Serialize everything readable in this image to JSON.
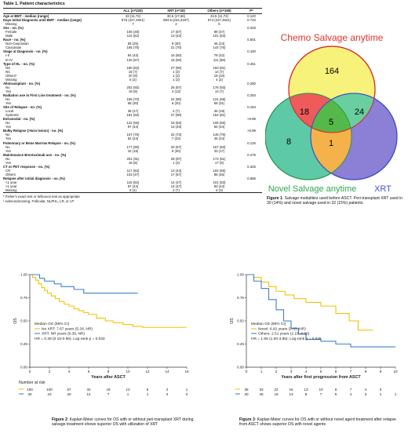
{
  "table": {
    "title": "Table 1. Patient characteristics",
    "columns": [
      "",
      "ALL (n=220)",
      "XRT (n=30)",
      "Others (n=190)",
      "P*"
    ],
    "rows": [
      {
        "label": "Age at BMT - median (range)",
        "bold": true,
        "sub": false,
        "all": "33 (11,72)",
        "xrt": "30.5 (17,66)",
        "others": "34.5 (11,72)",
        "p": "0.120"
      },
      {
        "label": "Days Initial Diagnosis until BMT - median (range)",
        "bold": true,
        "sub": false,
        "all": "575 (227,4921)",
        "xrt": "584.5 (244,3187)",
        "others": "574 (227,4921)",
        "p": "0.733"
      },
      {
        "label": "Missing",
        "bold": false,
        "sub": true,
        "all": "7",
        "xrt": "2",
        "others": "5",
        "p": ""
      },
      {
        "label": "Sex - no. (%)",
        "bold": true,
        "sub": false,
        "all": "",
        "xrt": "",
        "others": "",
        "p": "0.333"
      },
      {
        "label": "Female",
        "bold": false,
        "sub": true,
        "all": "106 (48)",
        "xrt": "17 (57)",
        "others": "89 (47)",
        "p": ""
      },
      {
        "label": "Male",
        "bold": false,
        "sub": true,
        "all": "114 (52)",
        "xrt": "13 (43)",
        "others": "101 (53)",
        "p": ""
      },
      {
        "label": "Race - no. (%)",
        "bold": true,
        "sub": false,
        "all": "",
        "xrt": "",
        "others": "",
        "p": "0.501"
      },
      {
        "label": "Non-Caucasian",
        "bold": false,
        "sub": true,
        "all": "55 (25)",
        "xrt": "9 (30)",
        "others": "46 (24)",
        "p": ""
      },
      {
        "label": "Caucasian",
        "bold": false,
        "sub": true,
        "all": "165 (75)",
        "xrt": "21 (70)",
        "others": "144 (76)",
        "p": ""
      },
      {
        "label": "Stage at Diagnosis - no. (%)",
        "bold": true,
        "sub": false,
        "all": "",
        "xrt": "",
        "others": "",
        "p": "0.430"
      },
      {
        "label": "I-II",
        "bold": false,
        "sub": true,
        "all": "94 (43)",
        "xrt": "15 (50)",
        "others": "79 (42)",
        "p": ""
      },
      {
        "label": "III-IV",
        "bold": false,
        "sub": true,
        "all": "126 (57)",
        "xrt": "15 (50)",
        "others": "111 (58)",
        "p": ""
      },
      {
        "label": "Type of HL - no. (%)",
        "bold": true,
        "sub": false,
        "all": "",
        "xrt": "",
        "others": "",
        "p": "0.461"
      },
      {
        "label": "NS",
        "bold": false,
        "sub": true,
        "all": "180 (82)",
        "xrt": "27 (90)",
        "others": "153 (81)",
        "p": ""
      },
      {
        "label": "NC",
        "bold": false,
        "sub": true,
        "all": "15 (7)",
        "xrt": "1 (3)",
        "others": "14 (7)",
        "p": ""
      },
      {
        "label": "Others¹",
        "bold": false,
        "sub": true,
        "all": "20 (9)",
        "xrt": "1 (3)",
        "others": "19 (10)",
        "p": ""
      },
      {
        "label": "Missing",
        "bold": false,
        "sub": true,
        "all": "5 (2)",
        "xrt": "1 (3)",
        "others": "4 (2)",
        "p": ""
      },
      {
        "label": "Allotransplant - no. (%)",
        "bold": true,
        "sub": false,
        "all": "",
        "xrt": "",
        "others": "",
        "p": "0.280"
      },
      {
        "label": "No",
        "bold": false,
        "sub": true,
        "all": "202 (92)",
        "xrt": "26 (87)",
        "others": "176 (93)",
        "p": ""
      },
      {
        "label": "Yes",
        "bold": false,
        "sub": true,
        "all": "18 (8)",
        "xrt": "4 (13)",
        "others": "14 (7)",
        "p": ""
      },
      {
        "label": "Radiation use in First Line treatment - no. (%)",
        "bold": true,
        "sub": false,
        "all": "",
        "xrt": "",
        "others": "",
        "p": "0.283"
      },
      {
        "label": "No",
        "bold": false,
        "sub": true,
        "all": "155 (70)",
        "xrt": "24 (80)",
        "others": "131 (69)",
        "p": ""
      },
      {
        "label": "Yes",
        "bold": false,
        "sub": true,
        "all": "65 (30)",
        "xrt": "6 (20)",
        "others": "59 (31)",
        "p": ""
      },
      {
        "label": "Site of Relapse - no. (%)",
        "bold": true,
        "sub": false,
        "all": "",
        "xrt": "",
        "others": "",
        "p": "0.184"
      },
      {
        "label": "Local",
        "bold": false,
        "sub": true,
        "all": "38 (17)",
        "xrt": "2 (7)",
        "others": "36 (19)",
        "p": ""
      },
      {
        "label": "Systemic",
        "bold": false,
        "sub": true,
        "all": "181 (82)",
        "xrt": "27 (90)",
        "others": "154 (81)",
        "p": ""
      },
      {
        "label": "Extranodal - no. (%)",
        "bold": true,
        "sub": false,
        "all": "",
        "xrt": "",
        "others": "",
        "p": ">0.99"
      },
      {
        "label": "No",
        "bold": false,
        "sub": true,
        "all": "122 (55)",
        "xrt": "16 (53)",
        "others": "106 (56)",
        "p": ""
      },
      {
        "label": "Yes",
        "bold": false,
        "sub": true,
        "all": "97 (44)",
        "xrt": "13 (43)",
        "others": "84 (44)",
        "p": ""
      },
      {
        "label": "Bulky Relapse (>5cm lesion) - no. (%)",
        "bold": true,
        "sub": false,
        "all": "",
        "xrt": "",
        "others": "",
        "p": ">0.99"
      },
      {
        "label": "No",
        "bold": false,
        "sub": true,
        "all": "167 (76)",
        "xrt": "22 (73)",
        "others": "145 (76)",
        "p": ""
      },
      {
        "label": "Yes",
        "bold": false,
        "sub": true,
        "all": "52 (24)",
        "xrt": "7 (23)",
        "others": "45 (24)",
        "p": ""
      },
      {
        "label": "Pulmonary or Bone Marrow Relapse - no. (%)",
        "bold": true,
        "sub": false,
        "all": "",
        "xrt": "",
        "others": "",
        "p": "0.125"
      },
      {
        "label": "No",
        "bold": false,
        "sub": true,
        "all": "177 (80)",
        "xrt": "20 (67)",
        "others": "157 (83)",
        "p": ""
      },
      {
        "label": "Yes",
        "bold": false,
        "sub": true,
        "all": "42 (19)",
        "xrt": "9 (30)",
        "others": "33 (17)",
        "p": ""
      },
      {
        "label": "Maintenance Brentuximab use - no. (%)",
        "bold": true,
        "sub": false,
        "all": "",
        "xrt": "",
        "others": "",
        "p": "0.479"
      },
      {
        "label": "No",
        "bold": false,
        "sub": true,
        "all": "201 (91)",
        "xrt": "29 (97)",
        "others": "172 (91)",
        "p": ""
      },
      {
        "label": "Yes",
        "bold": false,
        "sub": true,
        "all": "18 (8)",
        "xrt": "1 (3)",
        "others": "17 (9)",
        "p": ""
      },
      {
        "label": "CT or PET response - no. (%)",
        "bold": true,
        "sub": false,
        "all": "",
        "xrt": "",
        "others": "",
        "p": "0.325"
      },
      {
        "label": "CR",
        "bold": false,
        "sub": true,
        "all": "117 (53)",
        "xrt": "13 (43)",
        "others": "104 (55)",
        "p": ""
      },
      {
        "label": "Others",
        "bold": false,
        "sub": true,
        "all": "103 (47)",
        "xrt": "17 (57)",
        "others": "86 (45)",
        "p": ""
      },
      {
        "label": "Relapse after initial diagnosis - no. (%)",
        "bold": true,
        "sub": false,
        "all": "",
        "xrt": "",
        "others": "",
        "p": "0.686"
      },
      {
        "label": "<1 year",
        "bold": false,
        "sub": true,
        "all": "115 (52)",
        "xrt": "14 (47)",
        "others": "101 (53)",
        "p": ""
      },
      {
        "label": ">1 year",
        "bold": false,
        "sub": true,
        "all": "97 (44)",
        "xrt": "14 (47)",
        "others": "83 (44)",
        "p": ""
      },
      {
        "label": "Missing",
        "bold": false,
        "sub": true,
        "all": "8 (4)",
        "xrt": "2 (7)",
        "others": "6 (3)",
        "p": ""
      }
    ],
    "footnotes": [
      "* Fisher's exact test or Wilcoxon test as appropriate",
      "¹ Adenosclerosing, Follicular, NLPHL, LR, or LP"
    ]
  },
  "figure1": {
    "labels": {
      "chemo": "Chemo Salvage anytime",
      "novel": "Novel Salvage anytime",
      "xrt": "XRT"
    },
    "regions": {
      "chemo_only": "164",
      "chemo_novel": "18",
      "chemo_xrt": "24",
      "all_three": "5",
      "novel_only": "8",
      "novel_xrt": "1"
    },
    "colors": {
      "chemo": "#f7f27a",
      "novel": "#5ec9a6",
      "xrt": "#8b7fd6",
      "chemo_novel": "#ef5b5b",
      "chemo_xrt": "#69cfa0",
      "all_three": "#55b84a",
      "novel_xrt": "#f5b24a",
      "chemo_text": "#e0342d",
      "novel_text": "#2ba84a",
      "xrt_text": "#4a50d0"
    },
    "caption_label": "Figure 1",
    "caption_text": ": Salvage modalities used before ASCT. Peri-transplant XRT used in 30 (14%) and novel salvage used in 32 (15%) patients."
  },
  "figure2": {
    "caption_label": "Figure 2",
    "caption_text": ": Kaplan-Meier curves for OS with or without peri-transplant XRT during salvage treatment shows superior OS with utilization of XRT",
    "legend_title": "Median OS (95% CI)",
    "legend": [
      "No XRT: 7.67 years (5.28, NR)",
      "XRT: NR years (9.39, NR)"
    ],
    "hr_text": "HR = 0.38 (0.15-0.96); Log-rank p = 0.033",
    "xlabel": "Years after ASCT",
    "ylabel": "OS",
    "risk_title": "Number at risk",
    "risk": [
      [
        "190",
        "100",
        "57",
        "32",
        "19",
        "12",
        "6",
        "2",
        "1"
      ],
      [
        "30",
        "23",
        "20",
        "14",
        "7",
        "1",
        "1",
        "0",
        "0"
      ]
    ]
  },
  "figure3": {
    "caption_label": "Figure 3",
    "caption_text": ": Kaplan-Meier curves for OS with or without novel agent treatment after relapse from ASCT shows superior OS with novel agents",
    "legend_title": "Median OS (95% CI)",
    "legend": [
      "Novel: 6.92 years (2.63, NR)",
      "Others: 2.51 years (2.16, 6.95)"
    ],
    "hr_text": "HR = 1.96 (1.00-3.86); Log-rank p = 0.048",
    "xlabel": "Years after first progression from ASCT",
    "ylabel": "OS",
    "risk": [
      [
        "38",
        "33",
        "22",
        "16",
        "13",
        "10",
        "9",
        "7",
        "4",
        "0"
      ],
      [
        "30",
        "25",
        "19",
        "13",
        "8",
        "7",
        "6",
        "4",
        "3",
        "1",
        "1"
      ]
    ]
  },
  "chart_data": [
    {
      "type": "line",
      "title": "",
      "xlabel": "Years after ASCT",
      "ylabel": "OS",
      "xlim": [
        0,
        16
      ],
      "ylim": [
        0,
        1
      ],
      "xticks": [
        0,
        2,
        4,
        6,
        8,
        10,
        12,
        14,
        16
      ],
      "yticks": [
        0.0,
        0.25,
        0.5,
        0.75,
        1.0
      ],
      "series": [
        {
          "name": "No XRT",
          "color": "#f2c200",
          "x": [
            0,
            0.3,
            0.6,
            0.9,
            1.2,
            1.5,
            1.8,
            2.2,
            2.6,
            3.0,
            3.5,
            4.0,
            4.5,
            5.0,
            5.5,
            6.0,
            6.8,
            7.7,
            8.5,
            9.5,
            10.5,
            11.5,
            12.5,
            16
          ],
          "y": [
            1.0,
            0.97,
            0.94,
            0.9,
            0.86,
            0.83,
            0.8,
            0.77,
            0.74,
            0.71,
            0.68,
            0.66,
            0.63,
            0.61,
            0.59,
            0.57,
            0.53,
            0.5,
            0.48,
            0.46,
            0.44,
            0.43,
            0.43,
            0.43
          ]
        },
        {
          "name": "XRT",
          "color": "#3f80c8",
          "x": [
            0,
            1.0,
            1.5,
            2.5,
            3.2,
            4.5,
            5.5,
            9.0,
            11
          ],
          "y": [
            1.0,
            0.96,
            0.93,
            0.9,
            0.87,
            0.84,
            0.8,
            0.8,
            0.8
          ]
        }
      ]
    },
    {
      "type": "line",
      "title": "",
      "xlabel": "Years after first progression from ASCT",
      "ylabel": "OS",
      "xlim": [
        0,
        10
      ],
      "ylim": [
        0,
        1
      ],
      "xticks": [
        0,
        1,
        2,
        3,
        4,
        5,
        6,
        7,
        8,
        9,
        10
      ],
      "yticks": [
        0.0,
        0.25,
        0.5,
        0.75,
        1.0
      ],
      "series": [
        {
          "name": "Novel",
          "color": "#f2c200",
          "x": [
            0,
            0.5,
            1.0,
            1.5,
            2.0,
            2.6,
            3.2,
            4.0,
            5.0,
            6.0,
            6.9,
            7.5,
            8.5
          ],
          "y": [
            1.0,
            0.97,
            0.92,
            0.87,
            0.82,
            0.78,
            0.74,
            0.7,
            0.66,
            0.58,
            0.5,
            0.4,
            0.4
          ]
        },
        {
          "name": "Others",
          "color": "#3f80c8",
          "x": [
            0,
            0.5,
            1.0,
            1.5,
            2.0,
            2.5,
            3.0,
            3.5,
            4.0,
            5.0,
            6.0,
            7.0,
            8.5,
            10
          ],
          "y": [
            1.0,
            0.93,
            0.85,
            0.73,
            0.62,
            0.5,
            0.42,
            0.36,
            0.3,
            0.28,
            0.25,
            0.22,
            0.22,
            0.22
          ]
        }
      ]
    }
  ]
}
